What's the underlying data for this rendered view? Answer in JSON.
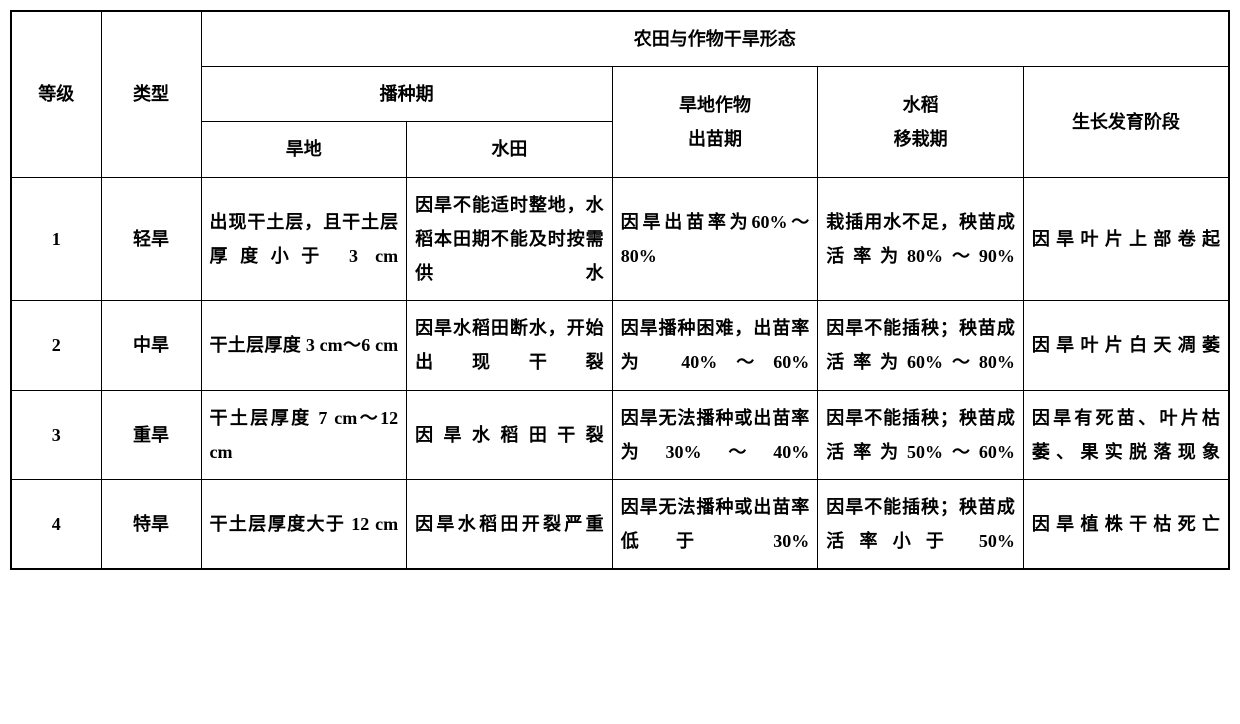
{
  "headers": {
    "grade": "等级",
    "type": "类型",
    "main_header": "农田与作物干旱形态",
    "sowing_period": "播种期",
    "dryland": "旱地",
    "paddy": "水田",
    "dryland_crop_seedling": "旱地作物\n出苗期",
    "rice_transplant": "水稻\n移栽期",
    "growth_stage": "生长发育阶段"
  },
  "rows": [
    {
      "grade": "1",
      "type": "轻旱",
      "dryland": "出现干土层，且干土层厚度小于 3 cm",
      "paddy": "因旱不能适时整地，水稻本田期不能及时按需供水",
      "seedling": "因旱出苗率为60%～80%",
      "rice": "栽插用水不足，秧苗成活率为80%～90%",
      "growth": "因旱叶片上部卷起"
    },
    {
      "grade": "2",
      "type": "中旱",
      "dryland": "干土层厚度 3 cm～6 cm",
      "paddy": "因旱水稻田断水，开始出现干裂",
      "seedling": "因旱播种困难，出苗率为 40%～60%",
      "rice": "因旱不能插秧；秧苗成活率为60%～80%",
      "growth": "因旱叶片白天凋萎"
    },
    {
      "grade": "3",
      "type": "重旱",
      "dryland": "干土层厚度 7 cm～12 cm",
      "paddy": "因旱水稻田干裂",
      "seedling": "因旱无法播种或出苗率为30%～40%",
      "rice": "因旱不能插秧；秧苗成活率为50%～60%",
      "growth": "因旱有死苗、叶片枯萎、果实脱落现象"
    },
    {
      "grade": "4",
      "type": "特旱",
      "dryland": "干土层厚度大于 12 cm",
      "paddy": "因旱水稻田开裂严重",
      "seedling": "因旱无法播种或出苗率低于 30%",
      "rice": "因旱不能插秧；秧苗成活率小于 50%",
      "growth": "因旱植株干枯死亡"
    }
  ]
}
